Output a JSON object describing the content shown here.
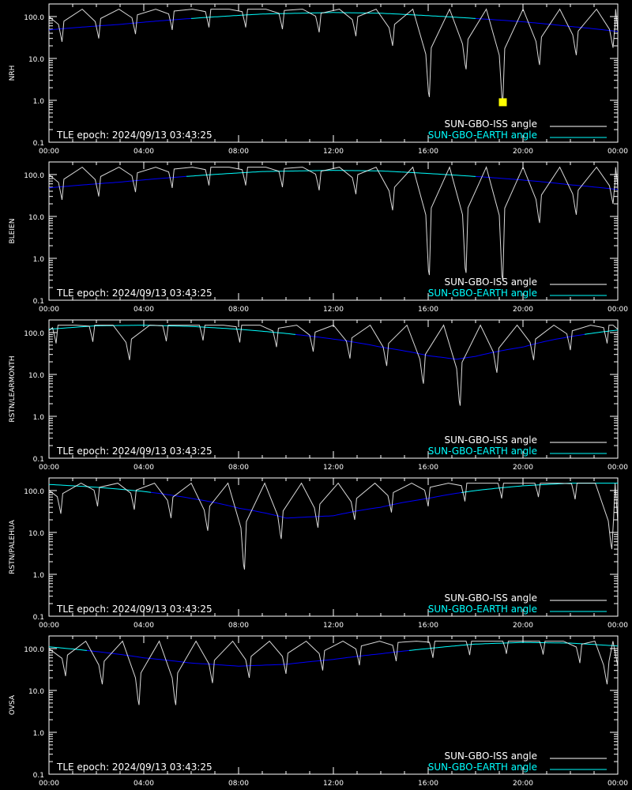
{
  "chart_data": {
    "type": "line",
    "epoch_label": "TLE epoch: 2024/09/13 03:43:25",
    "legend": [
      {
        "name": "SUN-GBO-ISS angle",
        "color": "#ffffff"
      },
      {
        "name": "SUN-GBO-EARTH angle",
        "color": "#00ffff"
      }
    ],
    "earth_curve_colors": {
      "above_threshold": "#00ffff",
      "below_threshold": "#0000ff",
      "threshold": 90
    },
    "iss_color": "#ffffff",
    "x_ticks": [
      "00:00",
      "04:00",
      "08:00",
      "12:00",
      "16:00",
      "20:00",
      "00:00"
    ],
    "x_range_hours": [
      0,
      24
    ],
    "y_scale": "log",
    "y_range": [
      0.1,
      200
    ],
    "y_ticks": [
      "0.1",
      "1.0",
      "10.0",
      "100.0"
    ],
    "y_tick_values": [
      0.1,
      1,
      10,
      100
    ],
    "panels": [
      {
        "ylabel": "NRH",
        "earth": {
          "hours": [
            0,
            3,
            6,
            9,
            12,
            14,
            16,
            18,
            20,
            22,
            24
          ],
          "values": [
            48,
            65,
            90,
            115,
            125,
            120,
            105,
            90,
            75,
            58,
            44
          ]
        },
        "iss": {
          "period_hours": 1.55,
          "phase_hours": 0.05,
          "peak": 150,
          "minima": [
            {
              "h": 0.55,
              "v": 25
            },
            {
              "h": 2.1,
              "v": 30
            },
            {
              "h": 3.65,
              "v": 38
            },
            {
              "h": 5.2,
              "v": 48
            },
            {
              "h": 6.75,
              "v": 55
            },
            {
              "h": 8.3,
              "v": 55
            },
            {
              "h": 9.85,
              "v": 50
            },
            {
              "h": 11.4,
              "v": 42
            },
            {
              "h": 12.95,
              "v": 34
            },
            {
              "h": 14.5,
              "v": 20
            },
            {
              "h": 16.05,
              "v": 1.2
            },
            {
              "h": 17.6,
              "v": 5.5
            },
            {
              "h": 19.15,
              "v": 0.9
            },
            {
              "h": 20.7,
              "v": 7
            },
            {
              "h": 22.25,
              "v": 12
            },
            {
              "h": 23.8,
              "v": 18
            }
          ]
        },
        "marker": {
          "h": 19.15,
          "v": 0.9,
          "color": "#ffff00"
        }
      },
      {
        "ylabel": "BLEIEN",
        "earth": {
          "hours": [
            0,
            3,
            6,
            9,
            12,
            14,
            16,
            18,
            20,
            22,
            24
          ],
          "values": [
            48,
            66,
            92,
            118,
            126,
            122,
            106,
            90,
            74,
            57,
            44
          ]
        },
        "iss": {
          "period_hours": 1.55,
          "phase_hours": 0.05,
          "peak": 150,
          "minima": [
            {
              "h": 0.55,
              "v": 25
            },
            {
              "h": 2.1,
              "v": 30
            },
            {
              "h": 3.65,
              "v": 38
            },
            {
              "h": 5.2,
              "v": 48
            },
            {
              "h": 6.75,
              "v": 55
            },
            {
              "h": 8.3,
              "v": 55
            },
            {
              "h": 9.85,
              "v": 50
            },
            {
              "h": 11.4,
              "v": 42
            },
            {
              "h": 12.95,
              "v": 34
            },
            {
              "h": 14.5,
              "v": 14
            },
            {
              "h": 16.05,
              "v": 0.4
            },
            {
              "h": 17.6,
              "v": 0.45
            },
            {
              "h": 19.15,
              "v": 0.3
            },
            {
              "h": 20.7,
              "v": 7
            },
            {
              "h": 22.25,
              "v": 11
            },
            {
              "h": 23.8,
              "v": 20
            }
          ]
        }
      },
      {
        "ylabel": "RSTN/LEARMONTH",
        "earth": {
          "hours": [
            0,
            2,
            4,
            6,
            8,
            10,
            12,
            14,
            16,
            17.2,
            18,
            20,
            22,
            24
          ],
          "values": [
            120,
            145,
            150,
            140,
            120,
            95,
            70,
            45,
            28,
            23,
            27,
            45,
            80,
            115
          ]
        },
        "iss": {
          "period_hours": 1.55,
          "phase_hours": 0.3,
          "peak": 150,
          "minima": [
            {
              "h": 0.3,
              "v": 55
            },
            {
              "h": 1.85,
              "v": 60
            },
            {
              "h": 3.4,
              "v": 22
            },
            {
              "h": 4.95,
              "v": 62
            },
            {
              "h": 6.5,
              "v": 65
            },
            {
              "h": 8.05,
              "v": 58
            },
            {
              "h": 9.6,
              "v": 45
            },
            {
              "h": 11.15,
              "v": 35
            },
            {
              "h": 12.7,
              "v": 24
            },
            {
              "h": 14.25,
              "v": 16
            },
            {
              "h": 15.8,
              "v": 6
            },
            {
              "h": 17.35,
              "v": 1.8
            },
            {
              "h": 18.9,
              "v": 11
            },
            {
              "h": 20.45,
              "v": 22
            },
            {
              "h": 22.0,
              "v": 38
            },
            {
              "h": 23.55,
              "v": 55
            }
          ]
        }
      },
      {
        "ylabel": "RSTN/PALEHUA",
        "earth": {
          "hours": [
            0,
            2,
            4,
            6,
            8,
            10,
            12,
            14,
            16,
            18,
            20,
            22,
            24
          ],
          "values": [
            140,
            120,
            95,
            65,
            38,
            22,
            25,
            40,
            65,
            100,
            130,
            150,
            150
          ]
        },
        "iss": {
          "period_hours": 1.55,
          "phase_hours": 0.5,
          "peak": 150,
          "minima": [
            {
              "h": 0.5,
              "v": 28
            },
            {
              "h": 2.05,
              "v": 42
            },
            {
              "h": 3.6,
              "v": 35
            },
            {
              "h": 5.15,
              "v": 22
            },
            {
              "h": 6.7,
              "v": 11
            },
            {
              "h": 8.25,
              "v": 1.3
            },
            {
              "h": 9.8,
              "v": 7
            },
            {
              "h": 11.35,
              "v": 13
            },
            {
              "h": 12.9,
              "v": 20
            },
            {
              "h": 14.45,
              "v": 30
            },
            {
              "h": 16.0,
              "v": 42
            },
            {
              "h": 17.55,
              "v": 55
            },
            {
              "h": 19.1,
              "v": 65
            },
            {
              "h": 20.65,
              "v": 70
            },
            {
              "h": 22.2,
              "v": 62
            },
            {
              "h": 23.75,
              "v": 4
            }
          ]
        }
      },
      {
        "ylabel": "OVSA",
        "earth": {
          "hours": [
            0,
            2,
            4,
            6,
            8,
            10,
            12,
            14,
            16,
            18,
            20,
            22,
            24
          ],
          "values": [
            110,
            85,
            60,
            45,
            38,
            42,
            55,
            75,
            100,
            128,
            140,
            135,
            115
          ]
        },
        "iss": {
          "period_hours": 1.55,
          "phase_hours": 0.7,
          "peak": 150,
          "minima": [
            {
              "h": 0.7,
              "v": 22
            },
            {
              "h": 2.25,
              "v": 14
            },
            {
              "h": 3.8,
              "v": 4.5
            },
            {
              "h": 5.35,
              "v": 4.5
            },
            {
              "h": 6.9,
              "v": 15
            },
            {
              "h": 8.45,
              "v": 20
            },
            {
              "h": 10.0,
              "v": 25
            },
            {
              "h": 11.55,
              "v": 30
            },
            {
              "h": 13.1,
              "v": 40
            },
            {
              "h": 14.65,
              "v": 50
            },
            {
              "h": 16.2,
              "v": 60
            },
            {
              "h": 17.75,
              "v": 70
            },
            {
              "h": 19.3,
              "v": 75
            },
            {
              "h": 20.85,
              "v": 72
            },
            {
              "h": 22.4,
              "v": 45
            },
            {
              "h": 23.55,
              "v": 14
            }
          ]
        }
      }
    ]
  }
}
